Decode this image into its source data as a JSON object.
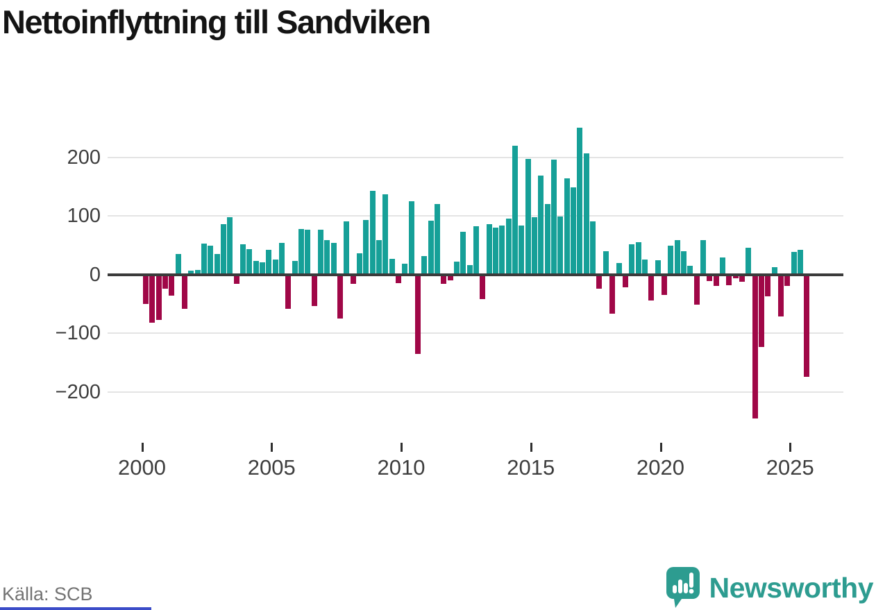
{
  "title": "Nettoinflyttning till Sandviken",
  "source": "Källa: SCB",
  "logo": {
    "text": "Newsworthy",
    "color": "#2d9c90"
  },
  "colors": {
    "positive_bar": "#16a098",
    "negative_bar": "#a00747",
    "zero_line": "#3b3b3b",
    "gridline": "#e4e4e4",
    "axis_text": "#3e3e3e",
    "title_text": "#141414",
    "source_text": "#737373",
    "footer_accent": "#3b4cc8",
    "logo_teal": "#2d9c90"
  },
  "chart_data": {
    "type": "bar",
    "title": "Nettoinflyttning till Sandviken",
    "xlabel": "",
    "ylabel": "",
    "frequency": "quarterly",
    "x_start": {
      "year": 2000,
      "quarter": 1
    },
    "x_end": {
      "year": 2025,
      "quarter": 3
    },
    "values": [
      -50,
      -82,
      -77,
      -24,
      -36,
      35,
      -58,
      6,
      8,
      53,
      49,
      35,
      86,
      98,
      -16,
      52,
      43,
      23,
      21,
      42,
      25,
      54,
      -59,
      23,
      78,
      76,
      -54,
      76,
      59,
      54,
      -75,
      90,
      -16,
      36,
      93,
      143,
      58,
      137,
      27,
      -15,
      18,
      125,
      -136,
      31,
      92,
      120,
      -16,
      -10,
      22,
      73,
      16,
      82,
      -42,
      86,
      80,
      83,
      95,
      220,
      83,
      197,
      98,
      169,
      120,
      196,
      99,
      164,
      149,
      250,
      207,
      90,
      -24,
      40,
      -67,
      19,
      -22,
      52,
      55,
      25,
      -44,
      24,
      -35,
      49,
      59,
      40,
      15,
      -52,
      59,
      -11,
      -20,
      29,
      -18,
      -7,
      -12,
      45,
      -245,
      -124,
      -37,
      12,
      -72,
      -20,
      38,
      42,
      -175
    ],
    "yticks": [
      200,
      100,
      0,
      -100,
      -200
    ],
    "ytick_labels": [
      "200",
      "100",
      "0",
      "−100",
      "−200"
    ],
    "xticks": [
      2000,
      2005,
      2010,
      2015,
      2020,
      2025
    ],
    "xtick_labels": [
      "2000",
      "2005",
      "2010",
      "2015",
      "2020",
      "2025"
    ],
    "ylim": [
      -260,
      265
    ],
    "grid": true,
    "legend": false,
    "positive_color": "#16a098",
    "negative_color": "#a00747"
  }
}
